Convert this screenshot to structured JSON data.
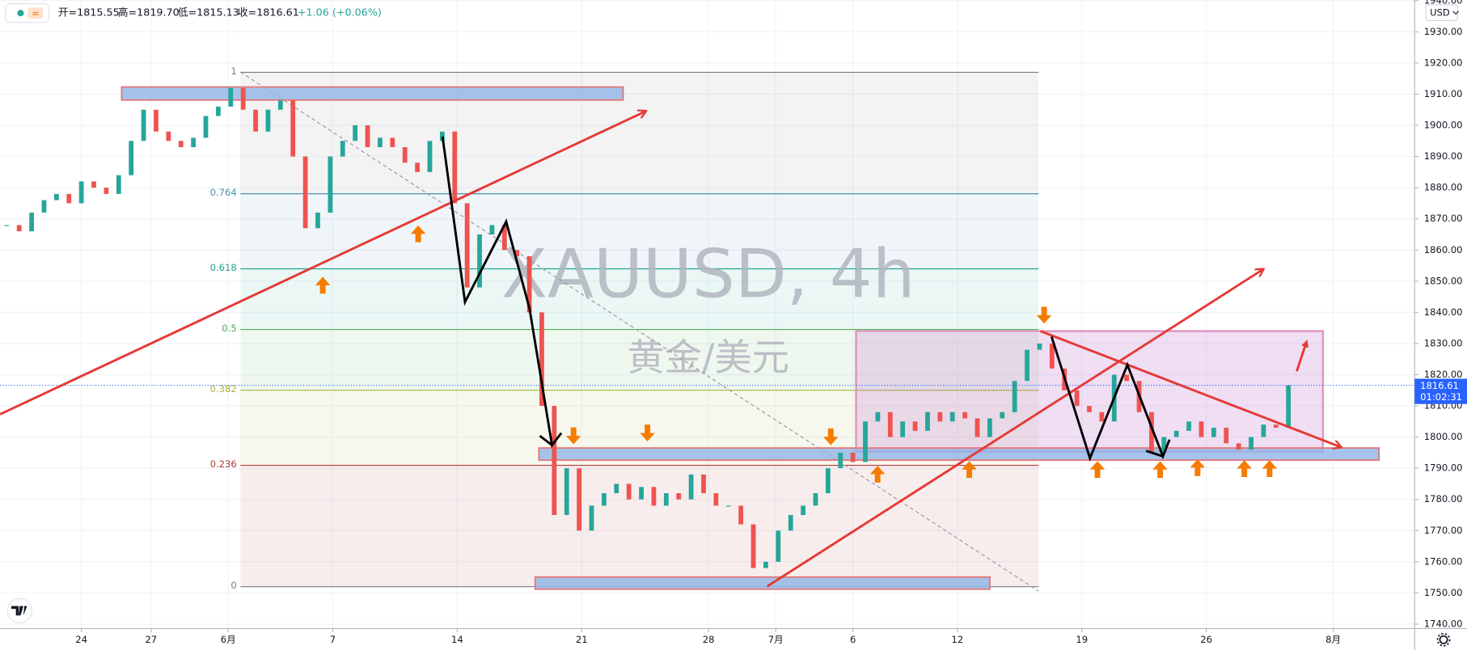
{
  "chart_data": {
    "type": "candlestick",
    "title": "XAUUSD, 4h",
    "subtitle": "黄金/美元",
    "header": {
      "open": "开=1815.55",
      "high": "高=1819.70",
      "low": "低=1815.13",
      "close": "收=1816.61",
      "change": "+1.06 (+0.06%)"
    },
    "currency": "USD",
    "countdown": "01:02:31",
    "last_price": 1816.61,
    "up_color": "#26a69a",
    "down_color": "#ef5350",
    "x": [
      -3,
      -2.5,
      -2,
      -1.5,
      -1,
      -0.5,
      0,
      0.5,
      1,
      1.5,
      2,
      2.5,
      3,
      3.5,
      4,
      4.5,
      5,
      5.5,
      6,
      6.5,
      7,
      7.5,
      8,
      8.5,
      9,
      9.5,
      10,
      10.5,
      11,
      11.5,
      12,
      12.5,
      13,
      13.5,
      14,
      14.5,
      15,
      15.5,
      16,
      16.5,
      17,
      17.5,
      18,
      18.5,
      19,
      19.5,
      20,
      20.5,
      21,
      21.5,
      22,
      22.5,
      23,
      23.5,
      24,
      24.5,
      25,
      25.5,
      26,
      26.5,
      27,
      27.5,
      28,
      28.5,
      29,
      29.5,
      30,
      30.5,
      31,
      31.5,
      32,
      32.5,
      33,
      33.5,
      34,
      34.5,
      35,
      35.5,
      36,
      36.5,
      37,
      37.5,
      38,
      38.5,
      39,
      39.5,
      40,
      40.5,
      41,
      41.5,
      42,
      42.5,
      43,
      43.5,
      44,
      44.5,
      45,
      45.5,
      46,
      46.5,
      47,
      47.5,
      48,
      48.5
    ],
    "values": [
      1868,
      1866,
      1872,
      1876,
      1878,
      1875,
      1882,
      1880,
      1878,
      1884,
      1895,
      1905,
      1898,
      1895,
      1893,
      1896,
      1903,
      1906,
      1912,
      1905,
      1898,
      1905,
      1908,
      1890,
      1867,
      1872,
      1890,
      1895,
      1900,
      1893,
      1896,
      1893,
      1888,
      1885,
      1895,
      1898,
      1875,
      1848,
      1865,
      1868,
      1860,
      1858,
      1840,
      1810,
      1775,
      1790,
      1770,
      1778,
      1782,
      1785,
      1780,
      1784,
      1778,
      1782,
      1780,
      1788,
      1782,
      1778,
      1778,
      1772,
      1758,
      1760,
      1770,
      1775,
      1778,
      1782,
      1790,
      1795,
      1792,
      1805,
      1808,
      1800,
      1805,
      1802,
      1808,
      1805,
      1808,
      1806,
      1800,
      1806,
      1808,
      1818,
      1828,
      1830,
      1822,
      1815,
      1810,
      1808,
      1805,
      1820,
      1818,
      1808,
      1795,
      1800,
      1802,
      1805,
      1800,
      1803,
      1798,
      1796,
      1800,
      1804,
      1803,
      1816.61
    ],
    "xlim": [
      -3.27,
      53.57
    ],
    "ylim": [
      1738.6,
      1940.2
    ],
    "xticks": [
      {
        "value": 0,
        "label": "24"
      },
      {
        "value": 2.8,
        "label": "27"
      },
      {
        "value": 5.9,
        "label": "6月"
      },
      {
        "value": 10.1,
        "label": "7"
      },
      {
        "value": 15.1,
        "label": "14"
      },
      {
        "value": 20.1,
        "label": "21"
      },
      {
        "value": 25.2,
        "label": "28"
      },
      {
        "value": 27.9,
        "label": "7月"
      },
      {
        "value": 31.0,
        "label": "6"
      },
      {
        "value": 35.2,
        "label": "12"
      },
      {
        "value": 40.2,
        "label": "19"
      },
      {
        "value": 45.2,
        "label": "26"
      },
      {
        "value": 50.3,
        "label": "8月"
      }
    ],
    "yticks": [
      {
        "value": 1740,
        "label": "1740.00"
      },
      {
        "value": 1750,
        "label": "1750.00"
      },
      {
        "value": 1760,
        "label": "1760.00"
      },
      {
        "value": 1770,
        "label": "1770.00"
      },
      {
        "value": 1780,
        "label": "1780.00"
      },
      {
        "value": 1790,
        "label": "1790.00"
      },
      {
        "value": 1800,
        "label": "1800.00"
      },
      {
        "value": 1810,
        "label": "1810.00"
      },
      {
        "value": 1820,
        "label": "1820.00"
      },
      {
        "value": 1830,
        "label": "1830.00"
      },
      {
        "value": 1840,
        "label": "1840.00"
      },
      {
        "value": 1850,
        "label": "1850.00"
      },
      {
        "value": 1860,
        "label": "1860.00"
      },
      {
        "value": 1870,
        "label": "1870.00"
      },
      {
        "value": 1880,
        "label": "1880.00"
      },
      {
        "value": 1890,
        "label": "1890.00"
      },
      {
        "value": 1900,
        "label": "1900.00"
      },
      {
        "value": 1910,
        "label": "1910.00"
      },
      {
        "value": 1920,
        "label": "1920.00"
      },
      {
        "value": 1930,
        "label": "1930.00"
      },
      {
        "value": 1940,
        "label": "1940.00"
      }
    ],
    "grid": true,
    "fib": {
      "range": [
        1752,
        1917
      ],
      "levels": [
        1,
        0.764,
        0.618,
        0.5,
        0.382,
        0.236,
        0
      ],
      "colors": [
        "#787b86",
        "#4a8fb3",
        "#1fa58f",
        "#4caf50",
        "#a8b63a",
        "#b23b3b",
        "#787b86"
      ]
    }
  }
}
